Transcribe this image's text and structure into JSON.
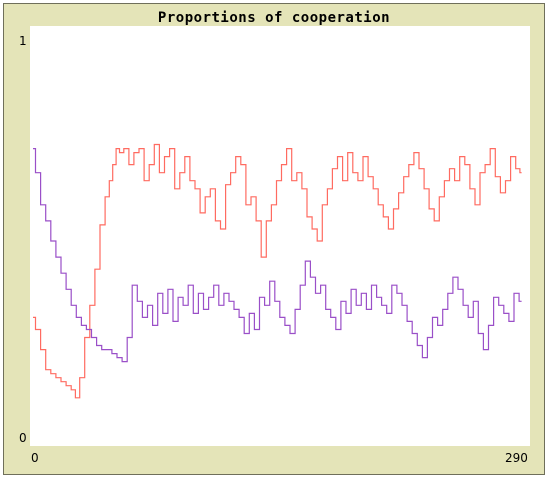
{
  "window": {
    "title": "Proportions of cooperation"
  },
  "chart_data": {
    "type": "line",
    "title": "Proportions of cooperation",
    "xlabel": "",
    "ylabel": "",
    "xlim": [
      0,
      290
    ],
    "ylim": [
      0,
      1
    ],
    "y_tick_labels": [
      "1",
      "0"
    ],
    "x_tick_labels": [
      "0",
      "290"
    ],
    "legend": "none",
    "grid": false,
    "series": [
      {
        "color": "#ff6b61",
        "x": [
          0,
          3,
          6,
          9,
          12,
          15,
          18,
          21,
          24,
          26,
          29,
          32,
          35,
          38,
          41,
          44,
          46,
          48,
          50,
          52,
          55,
          58,
          61,
          64,
          67,
          70,
          73,
          76,
          79,
          82,
          85,
          88,
          91,
          94,
          97,
          100,
          103,
          106,
          109,
          112,
          115,
          118,
          121,
          124,
          127,
          130,
          133,
          136,
          139,
          142,
          145,
          148,
          151,
          154,
          157,
          160,
          163,
          166,
          169,
          172,
          175,
          178,
          181,
          184,
          187,
          190,
          193,
          196,
          199,
          202,
          205,
          208,
          211,
          214,
          217,
          220,
          223,
          226,
          229,
          232,
          235,
          238,
          241,
          244,
          247,
          250,
          253,
          256,
          259,
          262,
          265,
          268,
          271,
          274,
          277,
          280,
          283,
          286,
          288
        ],
        "values": [
          0.3,
          0.27,
          0.22,
          0.17,
          0.16,
          0.15,
          0.14,
          0.13,
          0.12,
          0.1,
          0.15,
          0.25,
          0.33,
          0.42,
          0.53,
          0.6,
          0.64,
          0.68,
          0.72,
          0.71,
          0.72,
          0.68,
          0.71,
          0.72,
          0.64,
          0.68,
          0.73,
          0.66,
          0.7,
          0.72,
          0.62,
          0.66,
          0.7,
          0.64,
          0.62,
          0.56,
          0.6,
          0.62,
          0.54,
          0.52,
          0.63,
          0.66,
          0.7,
          0.68,
          0.58,
          0.6,
          0.54,
          0.45,
          0.54,
          0.58,
          0.64,
          0.68,
          0.72,
          0.64,
          0.66,
          0.62,
          0.55,
          0.52,
          0.49,
          0.58,
          0.62,
          0.67,
          0.7,
          0.64,
          0.71,
          0.66,
          0.64,
          0.7,
          0.65,
          0.62,
          0.58,
          0.55,
          0.52,
          0.57,
          0.61,
          0.65,
          0.68,
          0.71,
          0.67,
          0.62,
          0.57,
          0.54,
          0.6,
          0.64,
          0.67,
          0.64,
          0.7,
          0.68,
          0.62,
          0.58,
          0.66,
          0.68,
          0.72,
          0.65,
          0.61,
          0.64,
          0.7,
          0.67,
          0.66
        ]
      },
      {
        "color": "#9a4fc8",
        "x": [
          0,
          3,
          6,
          9,
          12,
          15,
          18,
          21,
          24,
          27,
          30,
          33,
          36,
          39,
          42,
          45,
          48,
          51,
          54,
          57,
          60,
          63,
          66,
          69,
          72,
          75,
          78,
          81,
          84,
          87,
          90,
          93,
          96,
          99,
          102,
          105,
          108,
          111,
          114,
          117,
          120,
          123,
          126,
          129,
          132,
          135,
          138,
          141,
          144,
          147,
          150,
          153,
          156,
          159,
          162,
          165,
          168,
          171,
          174,
          177,
          180,
          183,
          186,
          189,
          192,
          195,
          198,
          201,
          204,
          207,
          210,
          213,
          216,
          219,
          222,
          225,
          228,
          231,
          234,
          237,
          240,
          243,
          246,
          249,
          252,
          255,
          258,
          261,
          264,
          267,
          270,
          273,
          276,
          279,
          282,
          285,
          288
        ],
        "values": [
          0.72,
          0.66,
          0.58,
          0.54,
          0.49,
          0.45,
          0.41,
          0.37,
          0.33,
          0.3,
          0.28,
          0.27,
          0.25,
          0.23,
          0.22,
          0.22,
          0.21,
          0.2,
          0.19,
          0.25,
          0.38,
          0.34,
          0.3,
          0.33,
          0.28,
          0.36,
          0.31,
          0.37,
          0.29,
          0.35,
          0.33,
          0.38,
          0.31,
          0.36,
          0.32,
          0.35,
          0.38,
          0.33,
          0.36,
          0.34,
          0.32,
          0.3,
          0.26,
          0.31,
          0.27,
          0.35,
          0.33,
          0.39,
          0.34,
          0.3,
          0.28,
          0.26,
          0.32,
          0.38,
          0.44,
          0.4,
          0.36,
          0.38,
          0.32,
          0.3,
          0.27,
          0.34,
          0.31,
          0.37,
          0.33,
          0.36,
          0.32,
          0.38,
          0.35,
          0.33,
          0.31,
          0.38,
          0.36,
          0.33,
          0.29,
          0.26,
          0.23,
          0.2,
          0.25,
          0.3,
          0.28,
          0.32,
          0.36,
          0.4,
          0.37,
          0.33,
          0.3,
          0.34,
          0.26,
          0.22,
          0.28,
          0.35,
          0.33,
          0.31,
          0.29,
          0.36,
          0.34
        ]
      }
    ]
  }
}
